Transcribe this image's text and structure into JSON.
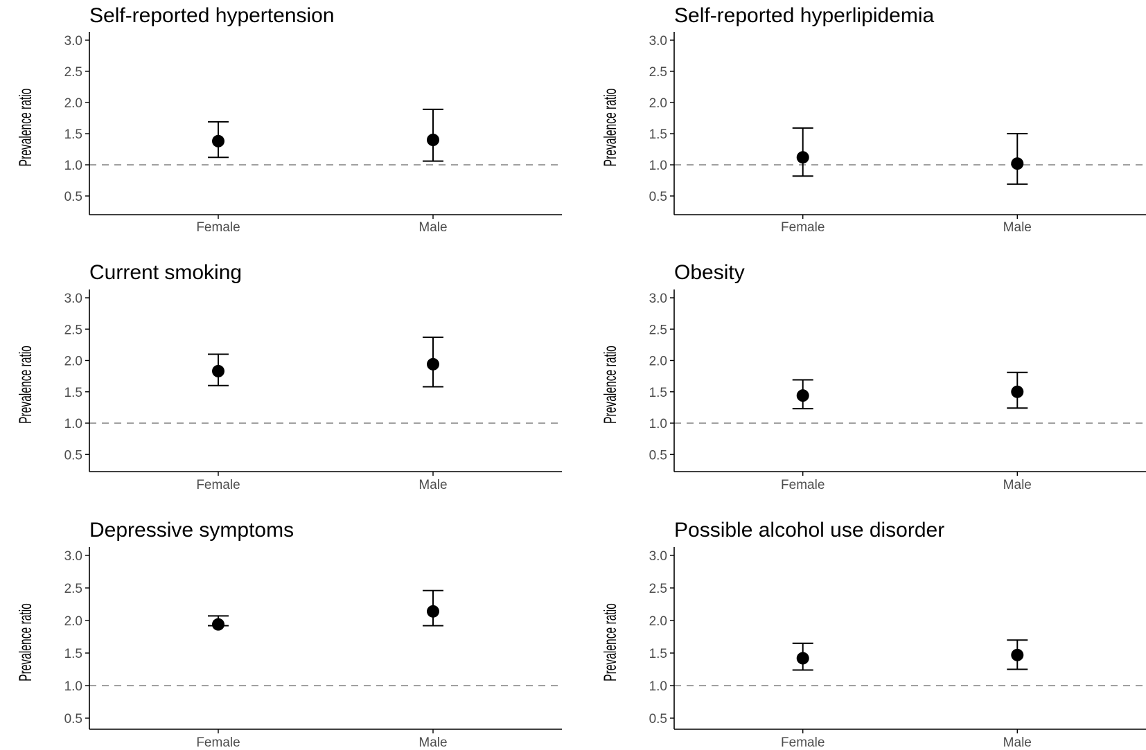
{
  "chart_data": [
    {
      "type": "scatter",
      "title": "Self-reported hypertension",
      "xlabel": "",
      "ylabel": "Prevalence ratio",
      "categories": [
        "Female",
        "Male"
      ],
      "points": [
        {
          "x": "Female",
          "y": 1.38,
          "lower": 1.12,
          "upper": 1.69
        },
        {
          "x": "Male",
          "y": 1.4,
          "lower": 1.06,
          "upper": 1.89
        }
      ],
      "reference_line": 1.0,
      "ylim": [
        0.25,
        3.05
      ],
      "yticks": [
        0.5,
        1.0,
        1.5,
        2.0,
        2.5,
        3.0
      ],
      "ytick_labels": [
        "0.5",
        "1.0",
        "1.5",
        "2.0",
        "2.5",
        "3.0"
      ]
    },
    {
      "type": "scatter",
      "title": "Self-reported hyperlipidemia",
      "xlabel": "",
      "ylabel": "Prevalence ratio",
      "categories": [
        "Female",
        "Male"
      ],
      "points": [
        {
          "x": "Female",
          "y": 1.12,
          "lower": 0.82,
          "upper": 1.59
        },
        {
          "x": "Male",
          "y": 1.02,
          "lower": 0.69,
          "upper": 1.5
        }
      ],
      "reference_line": 1.0,
      "ylim": [
        0.25,
        3.05
      ],
      "yticks": [
        0.5,
        1.0,
        1.5,
        2.0,
        2.5,
        3.0
      ],
      "ytick_labels": [
        "0.5",
        "1.0",
        "1.5",
        "2.0",
        "2.5",
        "3.0"
      ]
    },
    {
      "type": "scatter",
      "title": "Current smoking",
      "xlabel": "",
      "ylabel": "Prevalence ratio",
      "categories": [
        "Female",
        "Male"
      ],
      "points": [
        {
          "x": "Female",
          "y": 1.83,
          "lower": 1.6,
          "upper": 2.1
        },
        {
          "x": "Male",
          "y": 1.94,
          "lower": 1.58,
          "upper": 2.37
        }
      ],
      "reference_line": 1.0,
      "ylim": [
        0.25,
        3.05
      ],
      "yticks": [
        0.5,
        1.0,
        1.5,
        2.0,
        2.5,
        3.0
      ],
      "ytick_labels": [
        "0.5",
        "1.0",
        "1.5",
        "2.0",
        "2.5",
        "3.0"
      ]
    },
    {
      "type": "scatter",
      "title": "Obesity",
      "xlabel": "",
      "ylabel": "Prevalence ratio",
      "categories": [
        "Female",
        "Male"
      ],
      "points": [
        {
          "x": "Female",
          "y": 1.44,
          "lower": 1.23,
          "upper": 1.69
        },
        {
          "x": "Male",
          "y": 1.5,
          "lower": 1.24,
          "upper": 1.81
        }
      ],
      "reference_line": 1.0,
      "ylim": [
        0.25,
        3.05
      ],
      "yticks": [
        0.5,
        1.0,
        1.5,
        2.0,
        2.5,
        3.0
      ],
      "ytick_labels": [
        "0.5",
        "1.0",
        "1.5",
        "2.0",
        "2.5",
        "3.0"
      ]
    },
    {
      "type": "scatter",
      "title": "Depressive symptoms",
      "xlabel": "",
      "ylabel": "Prevalence ratio",
      "categories": [
        "Female",
        "Male"
      ],
      "points": [
        {
          "x": "Female",
          "y": 1.94,
          "lower": 1.92,
          "upper": 2.07
        },
        {
          "x": "Male",
          "y": 2.14,
          "lower": 1.92,
          "upper": 2.46
        }
      ],
      "reference_line": 1.0,
      "ylim": [
        0.25,
        3.05
      ],
      "yticks": [
        0.5,
        1.0,
        1.5,
        2.0,
        2.5,
        3.0
      ],
      "ytick_labels": [
        "0.5",
        "1.0",
        "1.5",
        "2.0",
        "2.5",
        "3.0"
      ]
    },
    {
      "type": "scatter",
      "title": "Possible alcohol use disorder",
      "xlabel": "",
      "ylabel": "Prevalence ratio",
      "categories": [
        "Female",
        "Male"
      ],
      "points": [
        {
          "x": "Female",
          "y": 1.42,
          "lower": 1.24,
          "upper": 1.65
        },
        {
          "x": "Male",
          "y": 1.47,
          "lower": 1.25,
          "upper": 1.7
        }
      ],
      "reference_line": 1.0,
      "ylim": [
        0.25,
        3.05
      ],
      "yticks": [
        0.5,
        1.0,
        1.5,
        2.0,
        2.5,
        3.0
      ],
      "ytick_labels": [
        "0.5",
        "1.0",
        "1.5",
        "2.0",
        "2.5",
        "3.0"
      ]
    }
  ],
  "colors": {
    "point": "#000000",
    "errorbar": "#000000",
    "reference_line": "#808080",
    "axis": "#000000",
    "tick_text": "#4d4d4d",
    "background": "#ffffff"
  }
}
